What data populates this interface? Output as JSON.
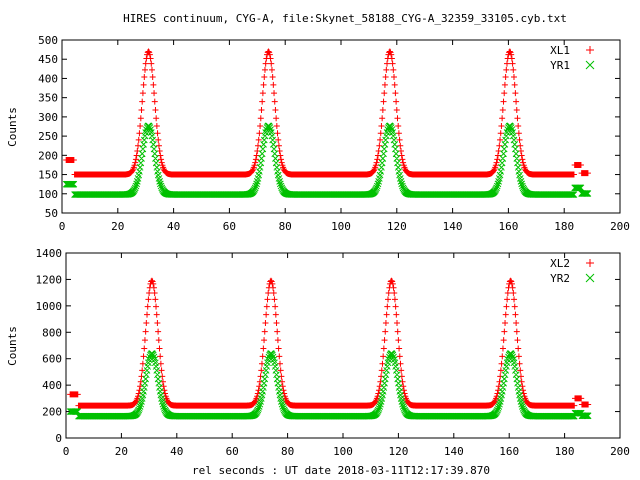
{
  "title": "HIRES continuum, CYG-A, file:Skynet_58188_CYG-A_32359_33105.cyb.txt",
  "xlabel": "rel seconds : UT date 2018-03-11T12:17:39.870",
  "colors": {
    "series_a": "#ff0000",
    "series_b": "#00c000"
  },
  "chart_data": [
    {
      "type": "scatter",
      "ylabel": "Counts",
      "xlim": [
        0,
        200
      ],
      "ylim": [
        50,
        500
      ],
      "xticks": [
        0,
        20,
        40,
        60,
        80,
        100,
        120,
        140,
        160,
        180,
        200
      ],
      "yticks": [
        50,
        100,
        150,
        200,
        250,
        300,
        350,
        400,
        450,
        500
      ],
      "legend_position": "top-right",
      "x_range": [
        1.5,
        188.5
      ],
      "peaks_x": [
        31,
        74,
        117.5,
        160.5
      ],
      "peak_sigma": 2.2,
      "series": [
        {
          "name": "XL1",
          "marker": "plus",
          "color": "#ff0000",
          "cal_level": 188,
          "baseline": 150,
          "peak": 470
        },
        {
          "name": "YR1",
          "marker": "cross",
          "color": "#00c000",
          "cal_level": 125,
          "baseline": 98,
          "peak": 277
        }
      ]
    },
    {
      "type": "scatter",
      "ylabel": "Counts",
      "xlim": [
        0,
        200
      ],
      "ylim": [
        0,
        1400
      ],
      "xticks": [
        0,
        20,
        40,
        60,
        80,
        100,
        120,
        140,
        160,
        180,
        200
      ],
      "yticks": [
        0,
        200,
        400,
        600,
        800,
        1000,
        1200,
        1400
      ],
      "legend_position": "top-right",
      "x_range": [
        1.5,
        188.5
      ],
      "peaks_x": [
        31,
        74,
        117.5,
        160.5
      ],
      "peak_sigma": 2.2,
      "series": [
        {
          "name": "XL2",
          "marker": "plus",
          "color": "#ff0000",
          "cal_level": 330,
          "baseline": 245,
          "peak": 1190
        },
        {
          "name": "YR2",
          "marker": "cross",
          "color": "#00c000",
          "cal_level": 200,
          "baseline": 165,
          "peak": 640
        }
      ]
    }
  ]
}
